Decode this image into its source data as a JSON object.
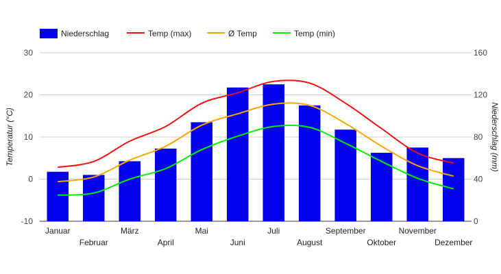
{
  "chart_data": {
    "type": "bar",
    "title": "",
    "categories": [
      "Januar",
      "Februar",
      "März",
      "April",
      "Mai",
      "Juni",
      "Juli",
      "August",
      "September",
      "Oktober",
      "November",
      "Dezember"
    ],
    "series": [
      {
        "name": "Niederschlag",
        "kind": "bar",
        "axis": "right",
        "color": "#0000ee",
        "values": [
          47,
          44,
          57,
          69,
          94,
          127,
          130,
          110,
          87,
          65,
          70,
          60
        ]
      },
      {
        "name": "Temp (max)",
        "kind": "line",
        "axis": "left",
        "color": "#ee1111",
        "values": [
          2.8,
          4.2,
          9.0,
          12.5,
          18.0,
          20.5,
          23.2,
          22.8,
          18.0,
          12.0,
          6.2,
          3.8
        ]
      },
      {
        "name": "Ø Temp",
        "kind": "line",
        "axis": "left",
        "color": "#ffa500",
        "values": [
          -0.6,
          0.5,
          4.5,
          7.8,
          12.8,
          15.5,
          17.8,
          17.5,
          13.2,
          7.8,
          3.2,
          0.7
        ]
      },
      {
        "name": "Temp (min)",
        "kind": "line",
        "axis": "left",
        "color": "#00ee00",
        "values": [
          -3.8,
          -3.3,
          0.0,
          2.5,
          7.0,
          10.2,
          12.5,
          12.3,
          8.5,
          4.2,
          0.2,
          -2.3
        ]
      }
    ],
    "y_left": {
      "label": "Temperatur (°C)",
      "range": [
        -10,
        30
      ],
      "ticks": [
        "-10",
        "0",
        "10",
        "20",
        "30"
      ]
    },
    "y_right": {
      "label": "Niederschlag (mm)",
      "range": [
        0,
        160
      ],
      "ticks": [
        "0",
        "40",
        "80",
        "120",
        "160"
      ]
    },
    "grid": true,
    "legend_position": "top-left"
  }
}
